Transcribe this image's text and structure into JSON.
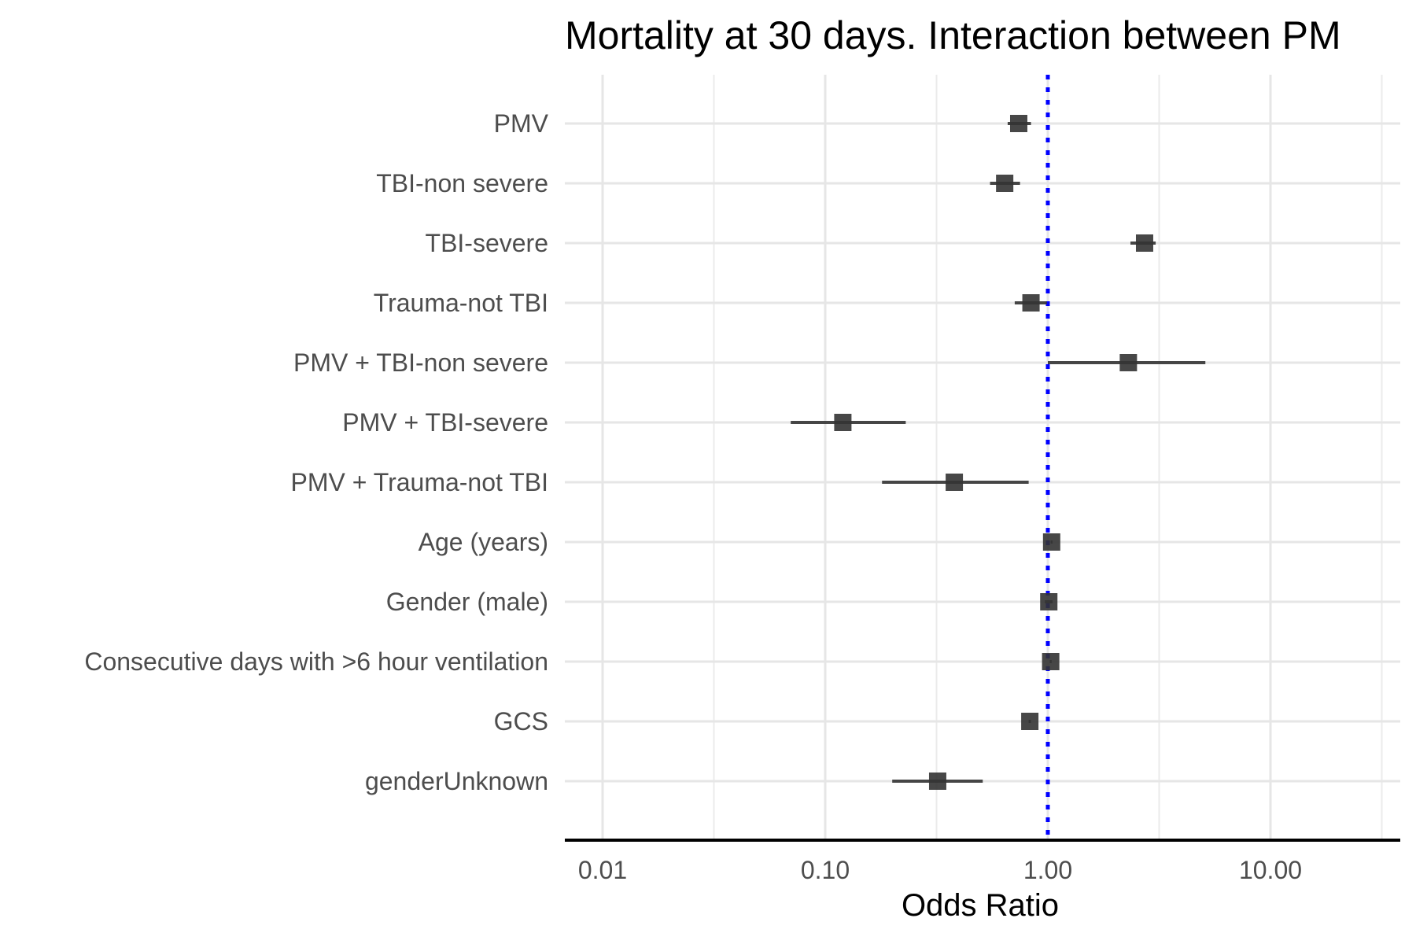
{
  "chart_data": {
    "type": "forest",
    "title": "Mortality at 30 days. Interaction between PM",
    "xlabel": "Odds Ratio",
    "ylabel": "",
    "x_scale": "log10",
    "xlim": [
      0.007,
      35
    ],
    "x_ticks": [
      0.01,
      0.1,
      1,
      10
    ],
    "x_tick_labels": [
      "0.01",
      "0.10",
      "1.00",
      "10.00"
    ],
    "reference_line": {
      "x": 1,
      "style": "dotted",
      "color": "#0000ff"
    },
    "grid": true,
    "point_color": "#333333",
    "rows": [
      {
        "label": "PMV",
        "or": 0.74,
        "lo": 0.66,
        "hi": 0.84
      },
      {
        "label": "TBI-non severe",
        "or": 0.64,
        "lo": 0.55,
        "hi": 0.75
      },
      {
        "label": "TBI-severe",
        "or": 2.72,
        "lo": 2.35,
        "hi": 3.05
      },
      {
        "label": "Trauma-not TBI",
        "or": 0.84,
        "lo": 0.71,
        "hi": 0.99
      },
      {
        "label": "PMV + TBI-non severe",
        "or": 2.3,
        "lo": 1.0,
        "hi": 5.1
      },
      {
        "label": "PMV + TBI-severe",
        "or": 0.12,
        "lo": 0.07,
        "hi": 0.23
      },
      {
        "label": "PMV + Trauma-not TBI",
        "or": 0.38,
        "lo": 0.18,
        "hi": 0.82
      },
      {
        "label": "Age (years)",
        "or": 1.04,
        "lo": 1.03,
        "hi": 1.05
      },
      {
        "label": "Gender (male)",
        "or": 1.01,
        "lo": 0.97,
        "hi": 1.05
      },
      {
        "label": "Consecutive days with >6 hour ventilation",
        "or": 1.03,
        "lo": 1.02,
        "hi": 1.04
      },
      {
        "label": "GCS",
        "or": 0.83,
        "lo": 0.82,
        "hi": 0.84
      },
      {
        "label": "genderUnknown",
        "or": 0.32,
        "lo": 0.2,
        "hi": 0.51
      }
    ]
  }
}
